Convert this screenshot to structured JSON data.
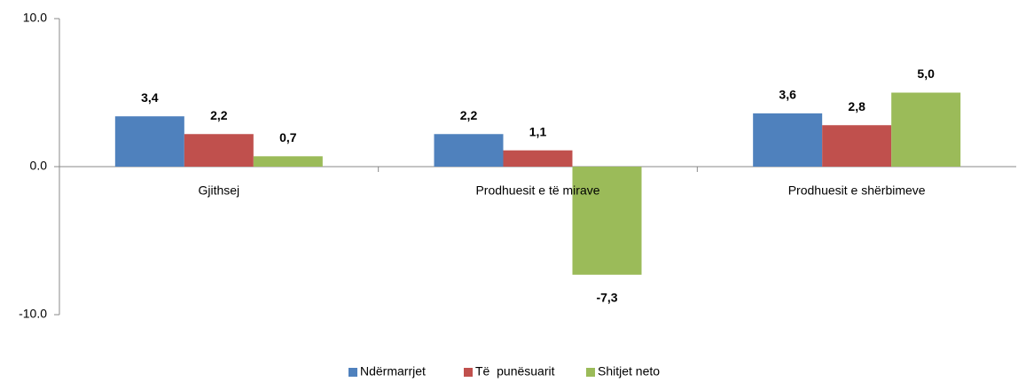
{
  "chart_data": {
    "type": "bar",
    "categories": [
      "Gjithsej",
      "Prodhuesit e të mirave",
      "Prodhuesit e shërbimeve"
    ],
    "series": [
      {
        "name": "Ndërmarrjet",
        "color": "#4f81bd",
        "values": [
          3.4,
          2.2,
          3.6
        ],
        "value_labels": [
          "3,4",
          "2,2",
          "3,6"
        ]
      },
      {
        "name": "Të  punësuarit",
        "color": "#c0504d",
        "values": [
          2.2,
          1.1,
          2.8
        ],
        "value_labels": [
          "2,2",
          "1,1",
          "2,8"
        ]
      },
      {
        "name": "Shitjet neto",
        "color": "#9bbb59",
        "values": [
          0.7,
          -7.3,
          5.0
        ],
        "value_labels": [
          "0,7",
          "-7,3",
          "5,0"
        ]
      }
    ],
    "ylim": [
      -10,
      10
    ],
    "yticks": [
      {
        "value": -10,
        "label": "-10.0"
      },
      {
        "value": 0,
        "label": "0.0"
      },
      {
        "value": 10,
        "label": "10.0"
      }
    ],
    "legend": "bottom"
  }
}
